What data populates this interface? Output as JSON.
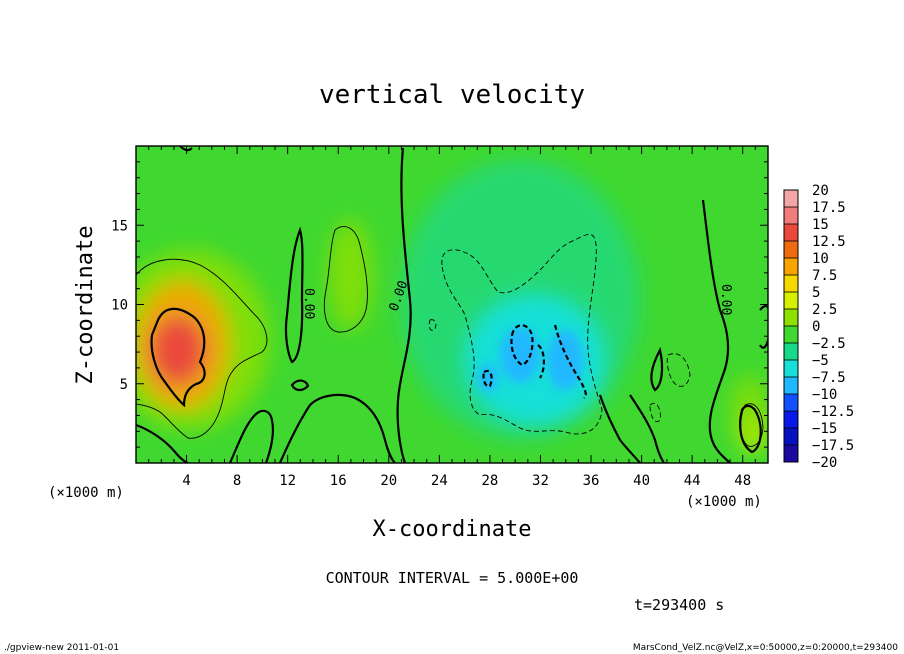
{
  "chart_data": {
    "type": "heatmap",
    "title": "vertical velocity",
    "xlabel": "X-coordinate",
    "ylabel": "Z-coordinate",
    "x_unit": "(×1000 m)",
    "z_unit": "(×1000 m)",
    "xlim": [
      0,
      50
    ],
    "ylim": [
      0,
      20
    ],
    "x_ticks": [
      "4",
      "8",
      "12",
      "16",
      "20",
      "24",
      "28",
      "32",
      "36",
      "40",
      "44",
      "48"
    ],
    "y_ticks": [
      "5",
      "10",
      "15"
    ],
    "colorbar": {
      "labels": [
        "20",
        "17.5",
        "15",
        "12.5",
        "10",
        "7.5",
        "5",
        "2.5",
        "0",
        "−2.5",
        "−5",
        "−7.5",
        "−10",
        "−12.5",
        "−15",
        "−17.5",
        "−20"
      ],
      "colors": [
        "#f4a6a6",
        "#f07c7c",
        "#ea4a3a",
        "#f06a10",
        "#f8a400",
        "#f4d800",
        "#d6f000",
        "#8ee000",
        "#40d830",
        "#18d88c",
        "#18e0d8",
        "#20b8ff",
        "#1050ff",
        "#0818e8",
        "#0610c0",
        "#1a0aa0",
        "#7a10c0"
      ]
    },
    "contour_labels": [
      "0.00",
      "0.00",
      "0.00"
    ],
    "contour_interval": "CONTOUR INTERVAL = 5.000E+00",
    "time": "t=293400 s"
  },
  "footer": {
    "left": "./gpview-new  2011-01-01",
    "right": "MarsCond_VelZ.nc@VelZ,x=0:50000,z=0:20000,t=293400"
  }
}
